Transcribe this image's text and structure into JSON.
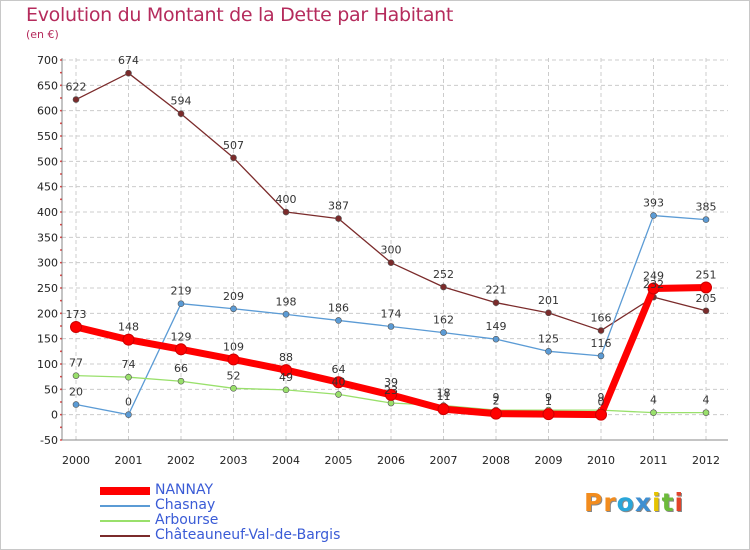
{
  "title": "Evolution du Montant de la Dette par Habitant",
  "subtitle": "(en €)",
  "logo_text": "Proxiti",
  "chart_data": {
    "type": "line",
    "title": "Evolution du Montant de la Dette par Habitant",
    "subtitle": "(en €)",
    "xlabel": "",
    "ylabel": "",
    "ylim": [
      -50,
      700
    ],
    "yticks": [
      -50,
      0,
      50,
      100,
      150,
      200,
      250,
      300,
      350,
      400,
      450,
      500,
      550,
      600,
      650,
      700
    ],
    "categories": [
      "2000",
      "2001",
      "2002",
      "2003",
      "2004",
      "2005",
      "2006",
      "2007",
      "2008",
      "2009",
      "2010",
      "2011",
      "2012"
    ],
    "grid": true,
    "legend_position": "bottom-left",
    "series": [
      {
        "name": "NANNAY",
        "color": "#ff0000",
        "values": [
          173,
          148,
          129,
          109,
          88,
          64,
          39,
          11,
          2,
          1,
          0,
          249,
          251
        ],
        "labels": [
          "173",
          "148",
          "129",
          "109",
          "88",
          "64",
          "39",
          "11",
          "2",
          "1",
          "0",
          "249",
          "251"
        ]
      },
      {
        "name": "Chasnay",
        "color": "#5b9bd5",
        "values": [
          20,
          0,
          219,
          209,
          198,
          186,
          174,
          162,
          149,
          125,
          116,
          393,
          385
        ],
        "labels": [
          "20",
          "0",
          "219",
          "209",
          "198",
          "186",
          "174",
          "162",
          "149",
          "125",
          "116",
          "393",
          "385"
        ]
      },
      {
        "name": "Arbourse",
        "color": "#99e06b",
        "values": [
          77,
          74,
          66,
          52,
          49,
          40,
          23,
          18,
          9,
          9,
          9,
          4,
          4
        ],
        "labels": [
          "77",
          "74",
          "66",
          "52",
          "49",
          "40",
          "23",
          "18",
          "9",
          "9",
          "9",
          "4",
          "4"
        ]
      },
      {
        "name": "Châteauneuf-Val-de-Bargis",
        "color": "#7b2b2b",
        "values": [
          622,
          674,
          594,
          507,
          400,
          387,
          300,
          252,
          221,
          201,
          166,
          232,
          205
        ],
        "labels": [
          "622",
          "674",
          "594",
          "507",
          "400",
          "387",
          "300",
          "252",
          "221",
          "201",
          "166",
          "232",
          "205"
        ]
      }
    ]
  }
}
